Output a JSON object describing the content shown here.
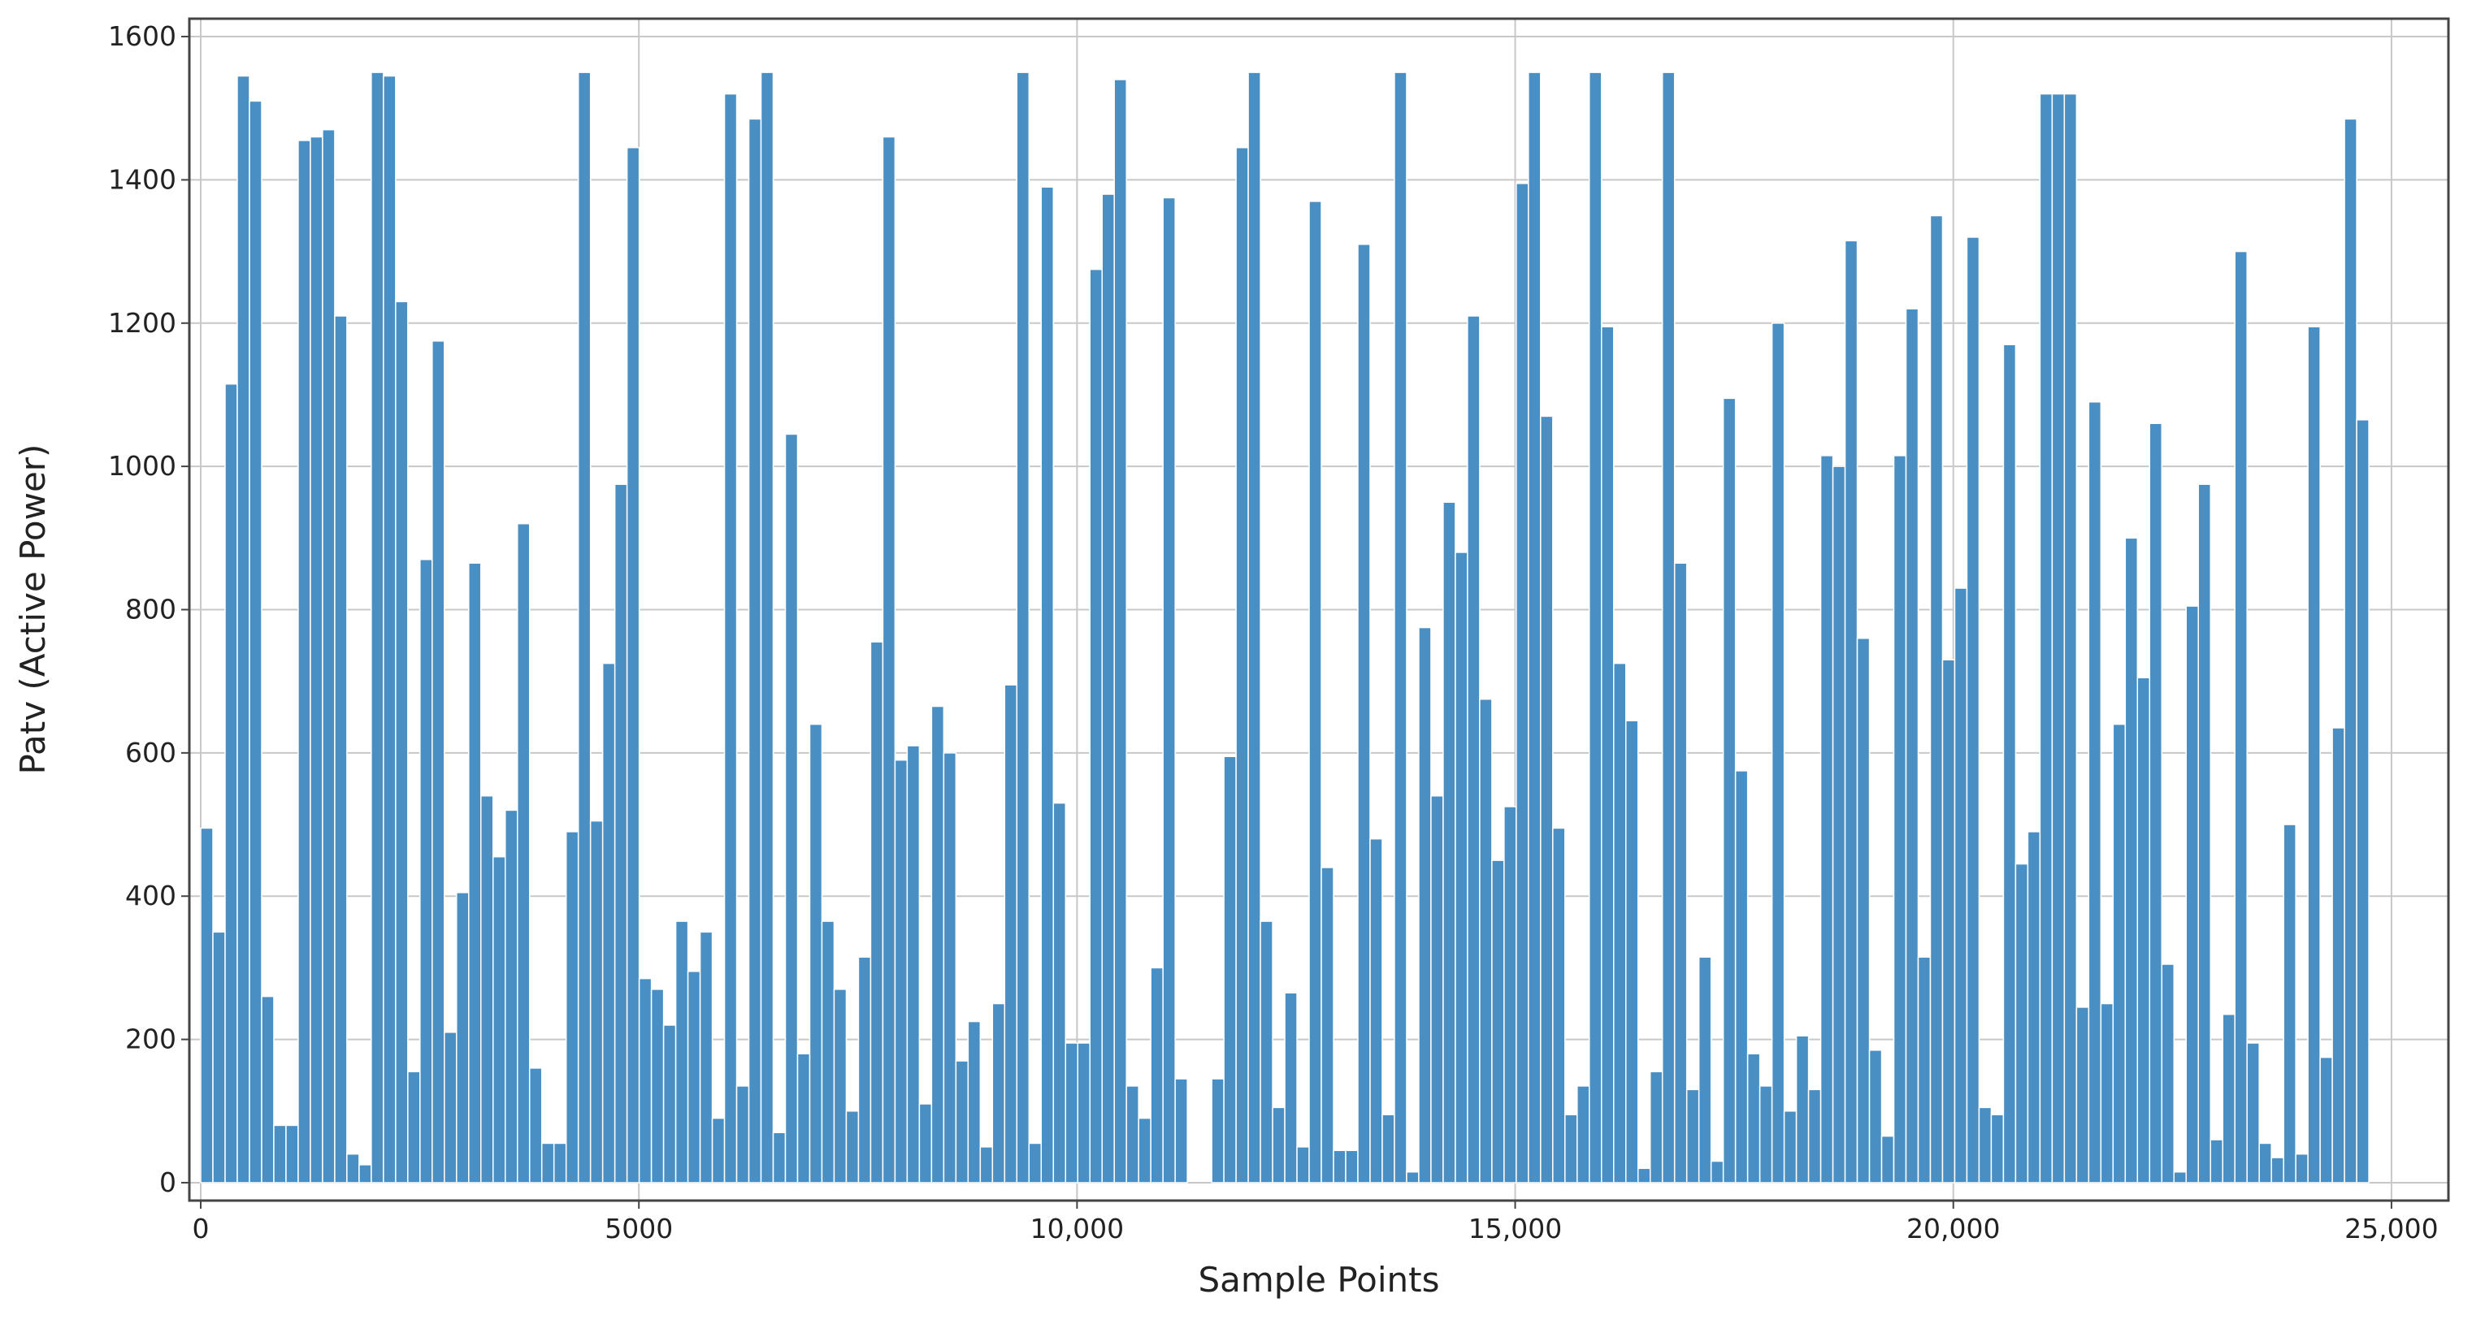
{
  "chart_data": {
    "type": "bar",
    "x_label": "Sample Points",
    "y_label": "Patv (Active Power)",
    "color": "#4a8fc3",
    "grid": true,
    "xlim": [
      -130,
      25650
    ],
    "ylim": [
      -25,
      1625
    ],
    "xticks": [
      0,
      5000,
      {
        "value": 10000,
        "label": "10,000"
      },
      {
        "value": 15000,
        "label": "15,000"
      },
      {
        "value": 20000,
        "label": "20,000"
      },
      {
        "value": 25000,
        "label": "25,000"
      }
    ],
    "yticks": [
      0,
      200,
      400,
      600,
      800,
      1000,
      1200,
      1400,
      1600
    ],
    "x": [
      0,
      139,
      278,
      417,
      556,
      695,
      834,
      973,
      1112,
      1251,
      1390,
      1529,
      1668,
      1807,
      1946,
      2085,
      2224,
      2363,
      2502,
      2641,
      2780,
      2919,
      3058,
      3197,
      3336,
      3475,
      3614,
      3753,
      3892,
      4031,
      4170,
      4309,
      4448,
      4587,
      4726,
      4865,
      5004,
      5143,
      5282,
      5421,
      5560,
      5699,
      5838,
      5977,
      6116,
      6255,
      6394,
      6533,
      6672,
      6811,
      6950,
      7089,
      7228,
      7367,
      7506,
      7645,
      7784,
      7923,
      8062,
      8201,
      8340,
      8479,
      8618,
      8757,
      8896,
      9035,
      9174,
      9313,
      9452,
      9591,
      9730,
      9869,
      10008,
      10147,
      10286,
      10425,
      10564,
      10703,
      10842,
      10981,
      11120,
      11259,
      11398,
      11537,
      11676,
      11815,
      11954,
      12093,
      12232,
      12371,
      12510,
      12649,
      12788,
      12927,
      13066,
      13205,
      13344,
      13483,
      13622,
      13761,
      13900,
      14039,
      14178,
      14317,
      14456,
      14595,
      14734,
      14873,
      15012,
      15151,
      15290,
      15429,
      15568,
      15707,
      15846,
      15985,
      16124,
      16263,
      16402,
      16541,
      16680,
      16819,
      16958,
      17097,
      17236,
      17375,
      17514,
      17653,
      17792,
      17931,
      18070,
      18209,
      18348,
      18487,
      18626,
      18765,
      18904,
      19043,
      19182,
      19321,
      19460,
      19599,
      19738,
      19877,
      20016,
      20155,
      20294,
      20433,
      20572,
      20711,
      20850,
      20989,
      21128,
      21267,
      21406,
      21545,
      21684,
      21823,
      21962,
      22101,
      22240,
      22379,
      22518,
      22657,
      22796,
      22935,
      23074,
      23213,
      23352,
      23491,
      23630,
      23769,
      23908,
      24047,
      24186,
      24325,
      24464,
      24603
    ],
    "values": [
      495,
      350,
      1115,
      1545,
      1510,
      260,
      80,
      80,
      1455,
      1460,
      1470,
      1210,
      40,
      25,
      1550,
      1545,
      1230,
      155,
      870,
      1175,
      210,
      405,
      865,
      540,
      455,
      520,
      920,
      160,
      55,
      55,
      490,
      1550,
      505,
      725,
      975,
      1445,
      285,
      270,
      220,
      365,
      295,
      350,
      90,
      1520,
      135,
      1485,
      1550,
      70,
      1045,
      180,
      640,
      365,
      270,
      100,
      315,
      755,
      1460,
      590,
      610,
      110,
      665,
      600,
      170,
      225,
      50,
      250,
      695,
      1550,
      55,
      1390,
      530,
      195,
      195,
      1275,
      1380,
      1540,
      135,
      90,
      300,
      1375,
      145,
      0,
      0,
      145,
      595,
      1445,
      1550,
      365,
      105,
      265,
      50,
      1370,
      440,
      45,
      45,
      1310,
      480,
      95,
      1550,
      15,
      775,
      540,
      950,
      880,
      1210,
      675,
      450,
      525,
      1395,
      1550,
      1070,
      495,
      95,
      135,
      1550,
      1195,
      725,
      645,
      20,
      155,
      1550,
      865,
      130,
      315,
      30,
      1095,
      575,
      180,
      135,
      1200,
      100,
      205,
      130,
      1015,
      1000,
      1315,
      760,
      185,
      65,
      1015,
      1220,
      315,
      1350,
      730,
      830,
      1320,
      105,
      95,
      1170,
      445,
      490,
      1520,
      1520,
      1520,
      245,
      1090,
      250,
      640,
      900,
      705,
      1060,
      305,
      15,
      805,
      975,
      60,
      235,
      1300,
      195,
      55,
      35,
      500,
      40,
      1195,
      175,
      635,
      1485,
      1065
    ]
  }
}
